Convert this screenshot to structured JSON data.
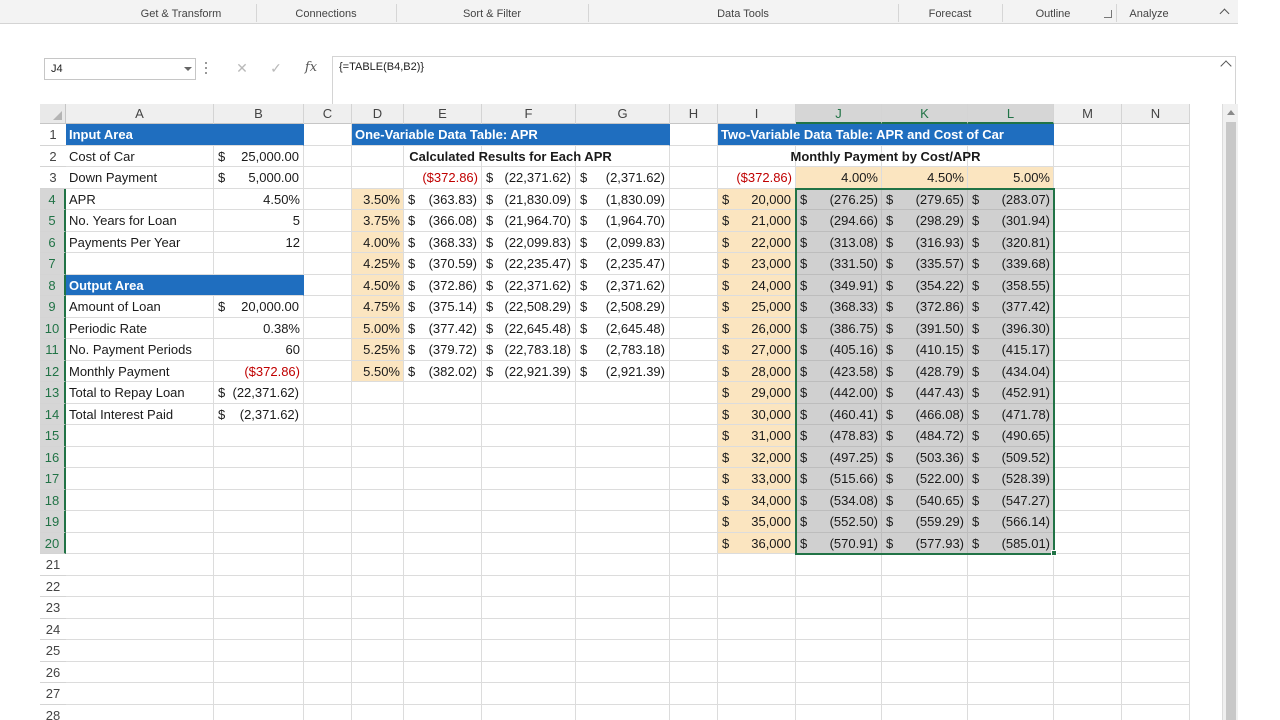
{
  "ribbon": {
    "groups": [
      "Get & Transform",
      "Connections",
      "Sort & Filter",
      "Data Tools",
      "Forecast",
      "Outline",
      "Analyze"
    ]
  },
  "formula_bar": {
    "name_box": "J4",
    "cancel_glyph": "✕",
    "enter_glyph": "✓",
    "fx_label": "fx",
    "formula": "{=TABLE(B4,B2)}"
  },
  "icons": {
    "name_box_dropdown": "chevron-down-icon",
    "cancel": "close-icon",
    "enter": "check-icon",
    "insert_function": "fx-icon",
    "expand_formula_bar": "chevron-up-icon",
    "ribbon_collapse": "chevron-up-icon",
    "dialog_launcher": "dialog-launcher-icon"
  },
  "colors": {
    "header_blue": "#1f6ebf",
    "input_peach": "#fbe5c0",
    "selection_gray": "#d0d0d0",
    "excel_green": "#217346",
    "negative_red": "#c00000"
  },
  "sheet": {
    "columns": [
      "A",
      "B",
      "C",
      "D",
      "E",
      "F",
      "G",
      "H",
      "I",
      "J",
      "K",
      "L",
      "M",
      "N"
    ],
    "rows": [
      "1",
      "2",
      "3",
      "4",
      "5",
      "6",
      "7",
      "8",
      "9",
      "10",
      "11",
      "12",
      "13",
      "14",
      "15",
      "16",
      "17",
      "18",
      "19",
      "20",
      "21",
      "22",
      "23",
      "24",
      "25",
      "26",
      "27",
      "28"
    ],
    "active_cell": "J4",
    "selected_range": "J4:L20"
  },
  "input_area": {
    "title": "Input Area",
    "rows": [
      {
        "label": "Cost of Car",
        "dollar": "$",
        "value": "25,000.00"
      },
      {
        "label": "Down Payment",
        "dollar": "$",
        "value": "5,000.00"
      },
      {
        "label": "APR",
        "dollar": "",
        "value": "4.50%"
      },
      {
        "label": "No. Years for Loan",
        "dollar": "",
        "value": "5"
      },
      {
        "label": "Payments Per Year",
        "dollar": "",
        "value": "12"
      }
    ]
  },
  "output_area": {
    "title": "Output Area",
    "rows": [
      {
        "label": "Amount of Loan",
        "dollar": "$",
        "value": "20,000.00",
        "red": false
      },
      {
        "label": "Periodic Rate",
        "dollar": "",
        "value": "0.38%",
        "red": false
      },
      {
        "label": "No. Payment Periods",
        "dollar": "",
        "value": "60",
        "red": false
      },
      {
        "label": "Monthly Payment",
        "dollar": "",
        "value": "($372.86)",
        "red": true
      },
      {
        "label": "Total to Repay Loan",
        "dollar": "$",
        "value": "(22,371.62)",
        "red": false
      },
      {
        "label": "Total Interest Paid",
        "dollar": "$",
        "value": "(2,371.62)",
        "red": false
      }
    ]
  },
  "one_var_table": {
    "title": "One-Variable Data Table: APR",
    "subtitle": "Calculated Results for Each APR",
    "formula_row": {
      "e": "($372.86)",
      "f": "(22,371.62)",
      "g": "(2,371.62)"
    },
    "rows": [
      {
        "apr": "3.50%",
        "e": "(363.83)",
        "f": "(21,830.09)",
        "g": "(1,830.09)"
      },
      {
        "apr": "3.75%",
        "e": "(366.08)",
        "f": "(21,964.70)",
        "g": "(1,964.70)"
      },
      {
        "apr": "4.00%",
        "e": "(368.33)",
        "f": "(22,099.83)",
        "g": "(2,099.83)"
      },
      {
        "apr": "4.25%",
        "e": "(370.59)",
        "f": "(22,235.47)",
        "g": "(2,235.47)"
      },
      {
        "apr": "4.50%",
        "e": "(372.86)",
        "f": "(22,371.62)",
        "g": "(2,371.62)"
      },
      {
        "apr": "4.75%",
        "e": "(375.14)",
        "f": "(22,508.29)",
        "g": "(2,508.29)"
      },
      {
        "apr": "5.00%",
        "e": "(377.42)",
        "f": "(22,645.48)",
        "g": "(2,645.48)"
      },
      {
        "apr": "5.25%",
        "e": "(379.72)",
        "f": "(22,783.18)",
        "g": "(2,783.18)"
      },
      {
        "apr": "5.50%",
        "e": "(382.02)",
        "f": "(22,921.39)",
        "g": "(2,921.39)"
      }
    ]
  },
  "two_var_table": {
    "title": "Two-Variable Data Table: APR and Cost of Car",
    "subtitle": "Monthly Payment by Cost/APR",
    "corner": "($372.86)",
    "aprs": [
      "4.00%",
      "4.50%",
      "5.00%"
    ],
    "rows": [
      {
        "cost": "20,000",
        "j": "(276.25)",
        "k": "(279.65)",
        "l": "(283.07)"
      },
      {
        "cost": "21,000",
        "j": "(294.66)",
        "k": "(298.29)",
        "l": "(301.94)"
      },
      {
        "cost": "22,000",
        "j": "(313.08)",
        "k": "(316.93)",
        "l": "(320.81)"
      },
      {
        "cost": "23,000",
        "j": "(331.50)",
        "k": "(335.57)",
        "l": "(339.68)"
      },
      {
        "cost": "24,000",
        "j": "(349.91)",
        "k": "(354.22)",
        "l": "(358.55)"
      },
      {
        "cost": "25,000",
        "j": "(368.33)",
        "k": "(372.86)",
        "l": "(377.42)"
      },
      {
        "cost": "26,000",
        "j": "(386.75)",
        "k": "(391.50)",
        "l": "(396.30)"
      },
      {
        "cost": "27,000",
        "j": "(405.16)",
        "k": "(410.15)",
        "l": "(415.17)"
      },
      {
        "cost": "28,000",
        "j": "(423.58)",
        "k": "(428.79)",
        "l": "(434.04)"
      },
      {
        "cost": "29,000",
        "j": "(442.00)",
        "k": "(447.43)",
        "l": "(452.91)"
      },
      {
        "cost": "30,000",
        "j": "(460.41)",
        "k": "(466.08)",
        "l": "(471.78)"
      },
      {
        "cost": "31,000",
        "j": "(478.83)",
        "k": "(484.72)",
        "l": "(490.65)"
      },
      {
        "cost": "32,000",
        "j": "(497.25)",
        "k": "(503.36)",
        "l": "(509.52)"
      },
      {
        "cost": "33,000",
        "j": "(515.66)",
        "k": "(522.00)",
        "l": "(528.39)"
      },
      {
        "cost": "34,000",
        "j": "(534.08)",
        "k": "(540.65)",
        "l": "(547.27)"
      },
      {
        "cost": "35,000",
        "j": "(552.50)",
        "k": "(559.29)",
        "l": "(566.14)"
      },
      {
        "cost": "36,000",
        "j": "(570.91)",
        "k": "(577.93)",
        "l": "(585.01)"
      }
    ]
  }
}
